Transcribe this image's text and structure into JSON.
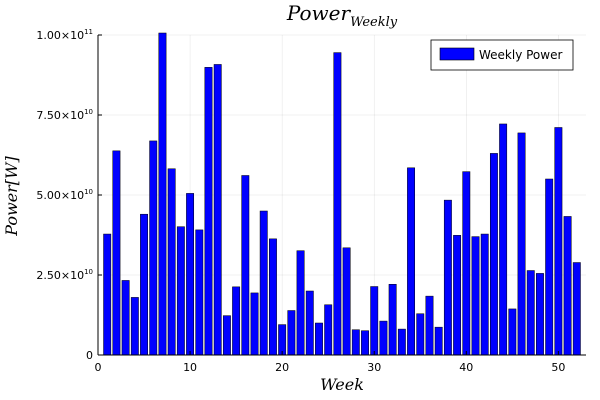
{
  "chart_data": {
    "type": "bar",
    "title": "Power",
    "title_subscript": "Weekly",
    "xlabel": "Week",
    "ylabel": "Power[W]",
    "legend": {
      "entries": [
        "Weekly Power"
      ],
      "placement": "top-right"
    },
    "grid": true,
    "bar_color": "#0000ff",
    "xlim": [
      0,
      53
    ],
    "ylim": [
      0,
      100000000000
    ],
    "xticks": [
      0,
      10,
      20,
      30,
      40,
      50
    ],
    "xtick_labels": [
      "0",
      "10",
      "20",
      "30",
      "40",
      "50"
    ],
    "yticks": [
      0,
      25000000000,
      50000000000,
      75000000000,
      100000000000
    ],
    "ytick_labels": [
      {
        "mantissa": "0",
        "exp": ""
      },
      {
        "mantissa": "2.50×10",
        "exp": "10"
      },
      {
        "mantissa": "5.00×10",
        "exp": "10"
      },
      {
        "mantissa": "7.50×10",
        "exp": "10"
      },
      {
        "mantissa": "1.00×10",
        "exp": "11"
      }
    ],
    "x": [
      1,
      2,
      3,
      4,
      5,
      6,
      7,
      8,
      9,
      10,
      11,
      12,
      13,
      14,
      15,
      16,
      17,
      18,
      19,
      20,
      21,
      22,
      23,
      24,
      25,
      26,
      27,
      28,
      29,
      30,
      31,
      32,
      33,
      34,
      35,
      36,
      37,
      38,
      39,
      40,
      41,
      42,
      43,
      44,
      45,
      46,
      47,
      48,
      49,
      50,
      51,
      52
    ],
    "series": [
      {
        "name": "Weekly Power",
        "values": [
          37800000000,
          63800000000,
          23300000000,
          18000000000,
          44000000000,
          66900000000,
          100900000000,
          58200000000,
          40100000000,
          50500000000,
          39100000000,
          89900000000,
          90800000000,
          12300000000,
          21300000000,
          56100000000,
          19400000000,
          45000000000,
          36300000000,
          9500000000,
          13900000000,
          32600000000,
          20000000000,
          10000000000,
          15700000000,
          94500000000,
          33500000000,
          7900000000,
          7600000000,
          21400000000,
          10600000000,
          22100000000,
          8100000000,
          58500000000,
          12900000000,
          18400000000,
          8700000000,
          48400000000,
          37400000000,
          57300000000,
          37000000000,
          37800000000,
          63000000000,
          72200000000,
          14400000000,
          69400000000,
          26400000000,
          25500000000,
          55000000000,
          71100000000,
          43300000000,
          28900000000
        ]
      }
    ]
  }
}
